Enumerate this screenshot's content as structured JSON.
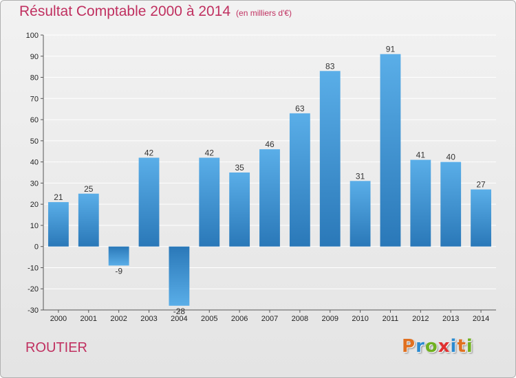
{
  "header": {
    "title": "Résultat Comptable 2000 à 2014",
    "subtitle": "(en milliers d'€)"
  },
  "footer": {
    "commune": "ROUTIER",
    "logo_text": "Proxiti",
    "logo_colors": [
      "#e07020",
      "#2a8ad0",
      "#70b020",
      "#e03030",
      "#2a8ad0",
      "#e07020",
      "#70b020"
    ]
  },
  "colors": {
    "bar_top": "#5aaee8",
    "bar_bottom": "#2a78b8",
    "title": "#c03060",
    "grid": "#ffffff"
  },
  "chart_data": {
    "type": "bar",
    "title": "Résultat Comptable 2000 à 2014",
    "xlabel": "",
    "ylabel": "",
    "ylim": [
      -30,
      100
    ],
    "ytick_step": 10,
    "grid": true,
    "categories": [
      "2000",
      "2001",
      "2002",
      "2003",
      "2004",
      "2005",
      "2006",
      "2007",
      "2008",
      "2009",
      "2010",
      "2011",
      "2012",
      "2013",
      "2014"
    ],
    "values": [
      21,
      25,
      -9,
      42,
      -28,
      42,
      35,
      46,
      63,
      83,
      31,
      91,
      41,
      40,
      27
    ],
    "data_labels": [
      "21",
      "25",
      "-9",
      "42",
      "-28",
      "42",
      "35",
      "46",
      "63",
      "83",
      "31",
      "91",
      "41",
      "40",
      "27"
    ]
  }
}
